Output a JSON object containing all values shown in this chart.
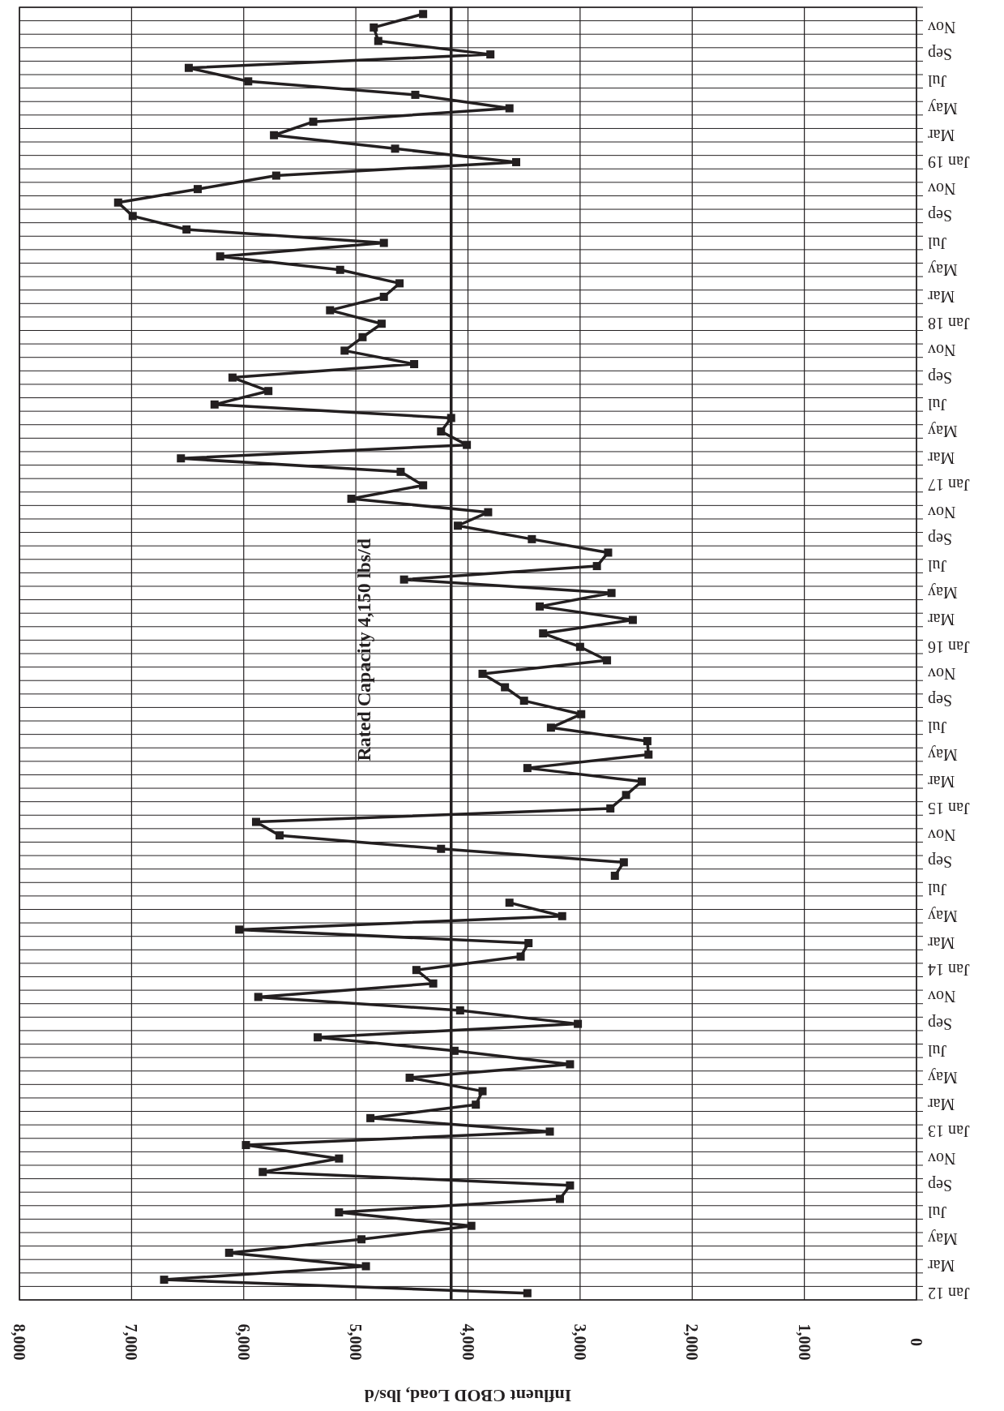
{
  "chart_data": {
    "type": "line",
    "orientation": "horizontal",
    "xlabel": "Influent CBOD Load, lbs/d",
    "categories": [
      null,
      "Nov",
      null,
      "Sep",
      null,
      "Jul",
      null,
      "May",
      null,
      "Mar",
      null,
      "Jan 19",
      null,
      "Nov",
      null,
      "Sep",
      null,
      "Jul",
      null,
      "May",
      null,
      "Mar",
      null,
      "Jan 18",
      null,
      "Nov",
      null,
      "Sep",
      null,
      "Jul",
      null,
      "May",
      null,
      "Mar",
      null,
      "Jan 17",
      null,
      "Nov",
      null,
      "Sep",
      null,
      "Jul",
      null,
      "May",
      null,
      "Mar",
      null,
      "Jan 16",
      null,
      "Nov",
      null,
      "Sep",
      null,
      "Jul",
      null,
      "May",
      null,
      "Mar",
      null,
      "Jan 15",
      null,
      "Nov",
      null,
      "Sep",
      null,
      "Jul",
      null,
      "May",
      null,
      "Mar",
      null,
      "Jan 14",
      null,
      "Nov",
      null,
      "Sep",
      null,
      "Jul",
      null,
      "May",
      null,
      "Mar",
      null,
      "Jan 13",
      null,
      "Nov",
      null,
      "Sep",
      null,
      "Jul",
      null,
      "May",
      null,
      "Mar",
      null,
      "Jan 12"
    ],
    "series": [
      {
        "color": "#231f20",
        "values": [
          4400,
          4840,
          4800,
          3800,
          6490,
          5960,
          4470,
          3630,
          5380,
          5730,
          4650,
          3570,
          5710,
          6410,
          7120,
          6990,
          6510,
          4750,
          6210,
          5140,
          4610,
          4750,
          5230,
          4770,
          4940,
          5100,
          4480,
          6100,
          5780,
          6260,
          4150,
          4240,
          4010,
          6560,
          4600,
          4400,
          5040,
          3820,
          4090,
          3430,
          2750,
          2850,
          4570,
          2720,
          3360,
          2530,
          3330,
          3000,
          2760,
          3870,
          3670,
          3500,
          2990,
          3260,
          2400,
          2390,
          3470,
          2450,
          2590,
          2730,
          5890,
          5680,
          4240,
          2610,
          2690,
          null,
          3630,
          3160,
          6040,
          3460,
          3530,
          4460,
          4310,
          5870,
          4070,
          3020,
          5340,
          4120,
          3090,
          4520,
          3870,
          3930,
          4870,
          3270,
          5980,
          5150,
          5830,
          3090,
          3180,
          5150,
          3970,
          4950,
          6130,
          4910,
          6710,
          3470
        ]
      }
    ],
    "xlim": [
      8000,
      0
    ],
    "xticks": [
      {
        "value": 8000,
        "label": "8,000"
      },
      {
        "value": 7000,
        "label": "7,000"
      },
      {
        "value": 6000,
        "label": "6,000"
      },
      {
        "value": 5000,
        "label": "5,000"
      },
      {
        "value": 4000,
        "label": "4,000"
      },
      {
        "value": 3000,
        "label": "3,000"
      },
      {
        "value": 2000,
        "label": "2,000"
      },
      {
        "value": 1000,
        "label": "1,000"
      },
      {
        "value": 0,
        "label": "0"
      }
    ],
    "grid": true,
    "marker": "square",
    "line_style": "solid",
    "ref_lines": [
      {
        "axis": "x",
        "value": 4150,
        "label": "Rated Capacity 4,150 lbs/d",
        "color": "#231f20"
      }
    ]
  }
}
